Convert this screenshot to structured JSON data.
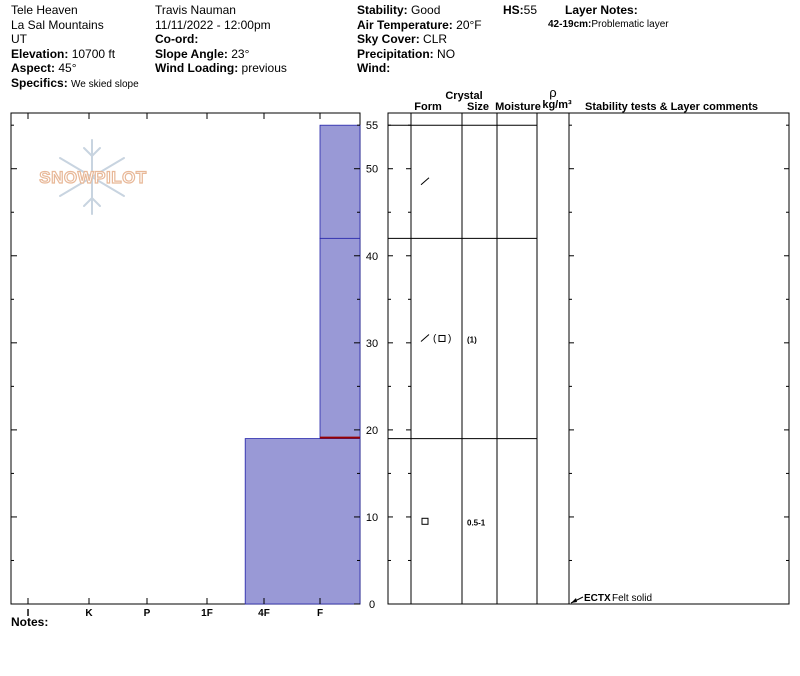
{
  "header": {
    "location": "Tele Heaven",
    "range": "La Sal Mountains",
    "state": "UT",
    "elevation_label": "Elevation:",
    "elevation": "10700 ft",
    "aspect_label": "Aspect:",
    "aspect": "45°",
    "specifics_label": "Specifics:",
    "specifics": "We skied slope",
    "observer": "Travis Nauman",
    "datetime": "11/11/2022 - 12:00pm",
    "coord_label": "Co-ord:",
    "slope_label": "Slope Angle:",
    "slope": "23°",
    "wind_loading_label": "Wind Loading:",
    "wind_loading": "previous",
    "stability_label": "Stability:",
    "stability": "Good",
    "air_temp_label": "Air Temperature:",
    "air_temp": "20°F",
    "sky_label": "Sky Cover:",
    "sky": "CLR",
    "precip_label": "Precipitation:",
    "precip": "NO",
    "wind_label": "Wind:",
    "hs_label": "HS:",
    "hs": "55",
    "layer_notes_label": "Layer Notes:",
    "layer_note_depth": "42-19cm:",
    "layer_note_text": "Problematic layer"
  },
  "logo_text": "SNOWPILOT",
  "columns": {
    "crystal": "Crystal",
    "form": "Form",
    "size": "Size",
    "moisture": "Moisture",
    "rho": "ρ",
    "density_unit": "kg/m³",
    "comments": "Stability tests & Layer comments"
  },
  "notes_label": "Notes:",
  "test_result": {
    "code": "ECTX",
    "comment": "Felt solid"
  },
  "colors": {
    "layer_fill": "#9999d6",
    "layer_stroke": "#2222aa",
    "problem_line": "#990000",
    "logo": "#f0c8a8"
  },
  "chart_data": {
    "type": "snow-profile",
    "depth_unit": "cm",
    "depth_range": [
      0,
      55
    ],
    "depth_ticks": [
      0,
      10,
      20,
      30,
      40,
      50,
      55
    ],
    "hardness_ticks": [
      "I",
      "K",
      "P",
      "1F",
      "4F",
      "F"
    ],
    "layers": [
      {
        "top": 55,
        "bottom": 42,
        "hardness": "F",
        "form": "DF",
        "size": "",
        "moisture": ""
      },
      {
        "top": 42,
        "bottom": 19,
        "hardness": "F+",
        "form": "DF(FC)",
        "size": "(1)",
        "moisture": ""
      },
      {
        "top": 19,
        "bottom": 0,
        "hardness": "4F-",
        "form": "FC",
        "size": "0.5-1",
        "moisture": ""
      }
    ],
    "problematic_interface_depth": 19
  }
}
